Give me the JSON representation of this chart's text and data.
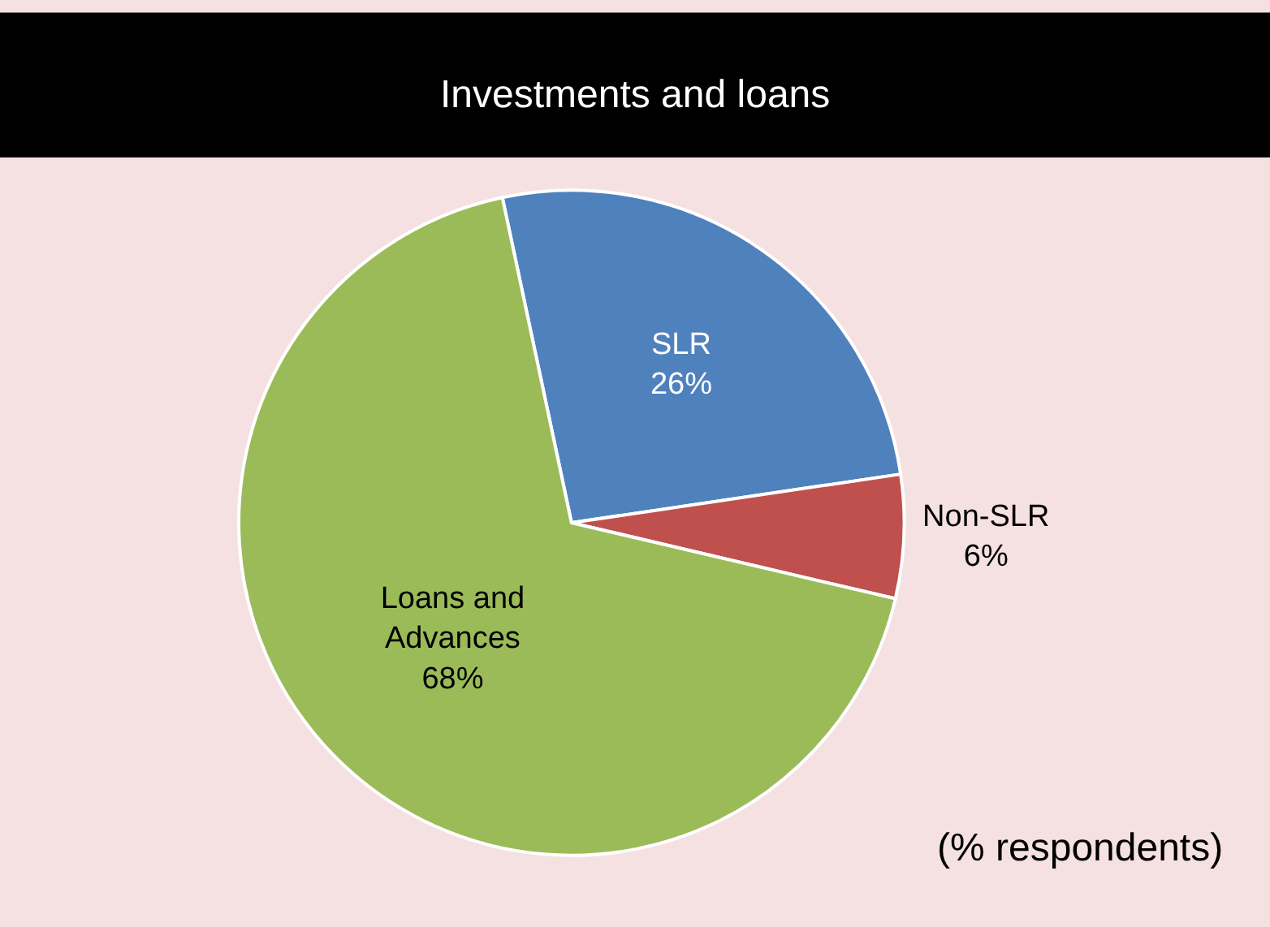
{
  "chart_data": {
    "type": "pie",
    "title": "Investments and loans",
    "categories": [
      "SLR",
      "Non-SLR",
      "Loans and Advances"
    ],
    "values": [
      26,
      6,
      68
    ],
    "value_labels": [
      "26%",
      "6%",
      "68%"
    ],
    "colors": [
      "#4f81bd",
      "#c0504d",
      "#9bbb59"
    ],
    "legend": false,
    "annotations": [
      "(% respondents)"
    ]
  }
}
